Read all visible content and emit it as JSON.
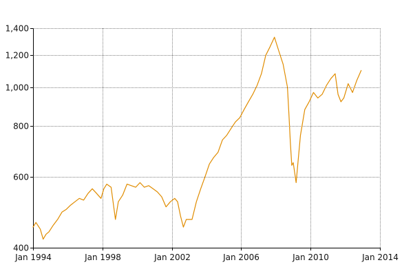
{
  "chart_data": {
    "type": "line",
    "title": "",
    "xlabel": "",
    "ylabel": "",
    "grid": true,
    "legend": "none",
    "x_scale": "time",
    "y_scale": "log",
    "xlim": [
      "1994-01",
      "2014-01"
    ],
    "ylim": [
      400,
      1400
    ],
    "x_ticks": [
      {
        "value": "1994-01",
        "label": "Jan 1994"
      },
      {
        "value": "1998-01",
        "label": "Jan 1998"
      },
      {
        "value": "2002-01",
        "label": "Jan 2002"
      },
      {
        "value": "2006-01",
        "label": "Jan 2006"
      },
      {
        "value": "2010-01",
        "label": "Jan 2010"
      },
      {
        "value": "2014-01",
        "label": "Jan 2014"
      }
    ],
    "y_ticks": [
      {
        "value": 400,
        "label": "400"
      },
      {
        "value": 600,
        "label": "600"
      },
      {
        "value": 800,
        "label": "800"
      },
      {
        "value": 1000,
        "label": "1,000"
      },
      {
        "value": 1200,
        "label": "1,200"
      },
      {
        "value": 1400,
        "label": "1,400"
      }
    ],
    "colors": {
      "series": "#e08c00"
    },
    "series": [
      {
        "color": "#e08c00",
        "x": [
          "1994-01",
          "1994-03",
          "1994-06",
          "1994-08",
          "1994-10",
          "1994-12",
          "1995-03",
          "1995-06",
          "1995-09",
          "1995-12",
          "1996-03",
          "1996-06",
          "1996-09",
          "1996-12",
          "1997-03",
          "1997-06",
          "1997-09",
          "1997-12",
          "1998-02",
          "1998-04",
          "1998-07",
          "1998-09",
          "1998-10",
          "1998-12",
          "1999-03",
          "1999-06",
          "1999-09",
          "1999-12",
          "2000-03",
          "2000-06",
          "2000-09",
          "2000-12",
          "2001-03",
          "2001-06",
          "2001-09",
          "2001-12",
          "2002-03",
          "2002-05",
          "2002-07",
          "2002-09",
          "2002-11",
          "2003-03",
          "2003-06",
          "2003-09",
          "2003-12",
          "2004-03",
          "2004-06",
          "2004-09",
          "2004-12",
          "2005-03",
          "2005-06",
          "2005-09",
          "2005-12",
          "2006-03",
          "2006-06",
          "2006-09",
          "2006-12",
          "2007-03",
          "2007-06",
          "2007-09",
          "2007-12",
          "2008-03",
          "2008-06",
          "2008-09",
          "2008-10",
          "2008-11",
          "2008-12",
          "2009-01",
          "2009-03",
          "2009-06",
          "2009-09",
          "2009-12",
          "2010-03",
          "2010-06",
          "2010-09",
          "2010-12",
          "2011-03",
          "2011-06",
          "2011-08",
          "2011-10",
          "2011-12",
          "2012-03",
          "2012-06",
          "2012-09",
          "2012-12"
        ],
        "y": [
          450,
          462,
          445,
          420,
          432,
          438,
          455,
          470,
          490,
          498,
          510,
          520,
          530,
          525,
          545,
          560,
          545,
          530,
          560,
          575,
          565,
          500,
          470,
          520,
          540,
          575,
          570,
          565,
          580,
          565,
          570,
          560,
          550,
          535,
          505,
          520,
          530,
          520,
          480,
          450,
          470,
          470,
          520,
          560,
          600,
          645,
          670,
          690,
          740,
          760,
          790,
          820,
          840,
          880,
          920,
          960,
          1010,
          1080,
          1200,
          1260,
          1330,
          1230,
          1140,
          1000,
          860,
          730,
          640,
          650,
          580,
          760,
          880,
          920,
          970,
          940,
          960,
          1010,
          1050,
          1080,
          960,
          920,
          940,
          1020,
          970,
          1040,
          1100
        ]
      }
    ]
  }
}
